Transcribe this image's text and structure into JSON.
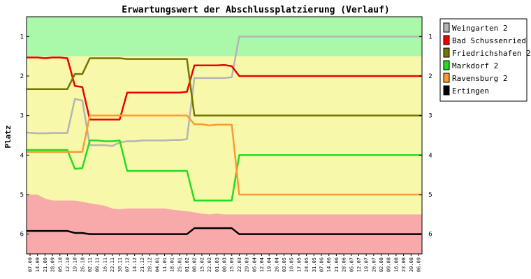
{
  "chart_data": {
    "type": "line",
    "title": "Erwartungswert der Abschlussplatzierung (Verlauf)",
    "ylabel": "Platz",
    "xlabel": "",
    "ylim": [
      0.5,
      6.5
    ],
    "y_inverted": true,
    "y_ticks": [
      1,
      2,
      3,
      4,
      5,
      6
    ],
    "x": [
      "07.09",
      "14.09",
      "21.09",
      "28.09",
      "05.10",
      "12.10",
      "19.10",
      "26.10",
      "02.11",
      "09.11",
      "16.11",
      "23.11",
      "30.11",
      "07.12",
      "14.12",
      "21.12",
      "28.12",
      "04.01",
      "11.01",
      "18.01",
      "25.01",
      "01.02",
      "08.02",
      "15.02",
      "22.02",
      "01.03",
      "08.03",
      "15.03",
      "22.03",
      "29.03",
      "05.04",
      "12.04",
      "19.04",
      "26.04",
      "03.05",
      "10.05",
      "17.05",
      "24.05",
      "31.05",
      "07.06",
      "14.06",
      "21.06",
      "28.06",
      "05.07",
      "12.07",
      "19.07",
      "26.07",
      "02.08",
      "09.08",
      "16.08",
      "23.08",
      "30.08",
      "06.09"
    ],
    "background_bands": [
      {
        "from": 0.5,
        "to": 1.5,
        "color": "#aaf8aa"
      },
      {
        "from": 1.5,
        "to": "upper_edge",
        "color": "#f8f8aa"
      },
      {
        "from": "upper_edge",
        "to": 6.5,
        "color": "#f8aaaa"
      }
    ],
    "relegation_band_upper_edge": [
      5.0,
      5.0,
      5.1,
      5.15,
      5.15,
      5.15,
      5.15,
      5.18,
      5.22,
      5.25,
      5.28,
      5.35,
      5.37,
      5.35,
      5.35,
      5.35,
      5.35,
      5.35,
      5.35,
      5.38,
      5.4,
      5.42,
      5.45,
      5.48,
      5.5,
      5.48,
      5.5,
      5.5,
      5.5,
      5.5,
      5.5,
      5.5,
      5.5,
      5.5,
      5.5,
      5.5,
      5.5,
      5.5,
      5.5,
      5.5,
      5.5,
      5.5,
      5.5,
      5.5,
      5.5,
      5.5,
      5.5,
      5.5,
      5.5,
      5.5,
      5.5,
      5.5,
      5.5
    ],
    "legend_position": "right",
    "series": [
      {
        "name": "Weingarten 2",
        "color": "#b4b4b4",
        "values": [
          3.43,
          3.45,
          3.45,
          3.44,
          3.44,
          3.44,
          2.58,
          2.62,
          3.75,
          3.75,
          3.75,
          3.77,
          3.68,
          3.65,
          3.65,
          3.63,
          3.63,
          3.63,
          3.63,
          3.62,
          3.62,
          3.6,
          2.05,
          2.05,
          2.05,
          2.05,
          2.05,
          2.03,
          1.0,
          1.0,
          1.0,
          1.0,
          1.0,
          1.0,
          1.0,
          1.0,
          1.0,
          1.0,
          1.0,
          1.0,
          1.0,
          1.0,
          1.0,
          1.0,
          1.0,
          1.0,
          1.0,
          1.0,
          1.0,
          1.0,
          1.0,
          1.0,
          1.0
        ]
      },
      {
        "name": "Bad Schussenried",
        "color": "#ee0000",
        "values": [
          1.53,
          1.53,
          1.55,
          1.53,
          1.53,
          1.55,
          2.25,
          2.28,
          3.1,
          3.1,
          3.1,
          3.1,
          3.1,
          2.42,
          2.42,
          2.42,
          2.42,
          2.42,
          2.42,
          2.42,
          2.42,
          2.4,
          1.73,
          1.73,
          1.73,
          1.73,
          1.72,
          1.75,
          2.0,
          2.0,
          2.0,
          2.0,
          2.0,
          2.0,
          2.0,
          2.0,
          2.0,
          2.0,
          2.0,
          2.0,
          2.0,
          2.0,
          2.0,
          2.0,
          2.0,
          2.0,
          2.0,
          2.0,
          2.0,
          2.0,
          2.0,
          2.0,
          2.0
        ]
      },
      {
        "name": "Friedrichshafen 2",
        "color": "#747400",
        "values": [
          2.33,
          2.33,
          2.33,
          2.33,
          2.33,
          2.33,
          1.95,
          1.95,
          1.55,
          1.55,
          1.55,
          1.55,
          1.55,
          1.57,
          1.57,
          1.57,
          1.57,
          1.57,
          1.57,
          1.57,
          1.57,
          1.57,
          3.0,
          3.0,
          3.0,
          3.0,
          3.0,
          3.0,
          3.0,
          3.0,
          3.0,
          3.0,
          3.0,
          3.0,
          3.0,
          3.0,
          3.0,
          3.0,
          3.0,
          3.0,
          3.0,
          3.0,
          3.0,
          3.0,
          3.0,
          3.0,
          3.0,
          3.0,
          3.0,
          3.0,
          3.0,
          3.0,
          3.0
        ]
      },
      {
        "name": "Markdorf 2",
        "color": "#22dd22",
        "values": [
          3.87,
          3.87,
          3.87,
          3.87,
          3.87,
          3.87,
          4.35,
          4.33,
          3.63,
          3.63,
          3.65,
          3.65,
          3.63,
          4.4,
          4.4,
          4.4,
          4.4,
          4.4,
          4.4,
          4.4,
          4.4,
          4.4,
          5.15,
          5.15,
          5.15,
          5.15,
          5.15,
          5.15,
          4.0,
          4.0,
          4.0,
          4.0,
          4.0,
          4.0,
          4.0,
          4.0,
          4.0,
          4.0,
          4.0,
          4.0,
          4.0,
          4.0,
          4.0,
          4.0,
          4.0,
          4.0,
          4.0,
          4.0,
          4.0,
          4.0,
          4.0,
          4.0,
          4.0
        ]
      },
      {
        "name": "Ravensburg 2",
        "color": "#ff9933",
        "values": [
          3.92,
          3.92,
          3.92,
          3.92,
          3.92,
          3.92,
          3.92,
          3.92,
          3.0,
          3.0,
          3.0,
          3.0,
          3.0,
          3.0,
          3.0,
          3.0,
          3.0,
          3.0,
          3.0,
          3.0,
          3.0,
          3.0,
          3.22,
          3.22,
          3.25,
          3.23,
          3.23,
          3.23,
          5.0,
          5.0,
          5.0,
          5.0,
          5.0,
          5.0,
          5.0,
          5.0,
          5.0,
          5.0,
          5.0,
          5.0,
          5.0,
          5.0,
          5.0,
          5.0,
          5.0,
          5.0,
          5.0,
          5.0,
          5.0,
          5.0,
          5.0,
          5.0,
          5.0
        ]
      },
      {
        "name": "Ertingen",
        "color": "#000000",
        "values": [
          5.92,
          5.92,
          5.92,
          5.92,
          5.92,
          5.92,
          5.97,
          5.97,
          6.0,
          6.0,
          6.0,
          6.0,
          6.0,
          6.0,
          6.0,
          6.0,
          6.0,
          6.0,
          6.0,
          6.0,
          6.0,
          6.0,
          5.85,
          5.85,
          5.85,
          5.85,
          5.85,
          5.85,
          6.0,
          6.0,
          6.0,
          6.0,
          6.0,
          6.0,
          6.0,
          6.0,
          6.0,
          6.0,
          6.0,
          6.0,
          6.0,
          6.0,
          6.0,
          6.0,
          6.0,
          6.0,
          6.0,
          6.0,
          6.0,
          6.0,
          6.0,
          6.0,
          6.0
        ]
      }
    ]
  }
}
